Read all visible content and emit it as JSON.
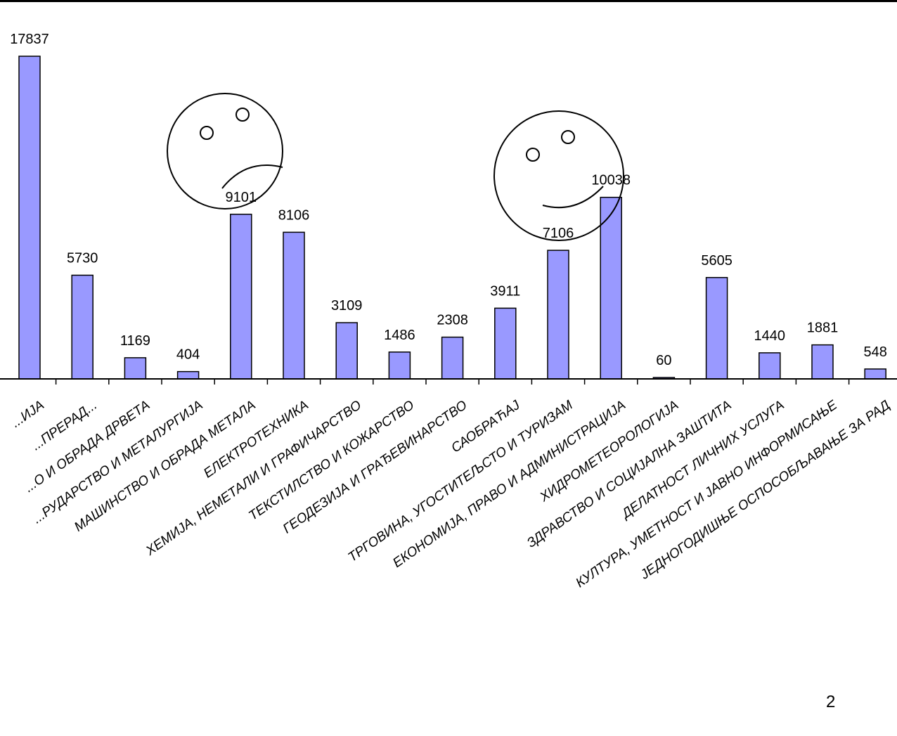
{
  "page_number": "2",
  "chart_data": {
    "type": "bar",
    "title": "",
    "xlabel": "",
    "ylabel": "",
    "ylim": [
      0,
      17837
    ],
    "grid": false,
    "legend": "none",
    "bar_color": "#9999ff",
    "categories": [
      "...ИЈА",
      "...ПРЕРАД...",
      "...О И ОБРАДА ДРВЕТА",
      "...РУДАРСТВО И МЕТАЛУРГИЈА",
      "МАШИНСТВО И ОБРАДА МЕТАЛА",
      "ЕЛЕКТРОТЕХНИКА",
      "ХЕМИЈА, НЕМЕТАЛИ И ГРАФИЧАРСТВО",
      "ТЕКСТИЛСТВО И КОЖАРСТВО",
      "ГЕОДЕЗИЈА И ГРАЂЕВИНАРСТВО",
      "САОБРАЋАЈ",
      "ТРГОВИНА, УГОСТИТЕЉСТО И ТУРИЗАМ",
      "ЕКОНОМИЈА, ПРАВО И АДМИНИСТРАЦИЈА",
      "ХИДРОМЕТЕОРОЛОГИЈА",
      "ЗДРАВСТВО И СОЦИЈАЛНА ЗАШТИТА",
      "ДЕЛАТНОСТ ЛИЧНИХ УСЛУГА",
      "КУЛТУРА, УМЕТНОСТ И ЈАВНО ИНФОРМИСАЊЕ",
      "ЈЕДНОГОДИШЊЕ ОСПОСОБЉАВАЊЕ ЗА РАД"
    ],
    "values": [
      17837,
      5730,
      1169,
      404,
      9101,
      8106,
      3109,
      1486,
      2308,
      3911,
      7106,
      10038,
      60,
      5605,
      1440,
      1881,
      548
    ],
    "value_labels": [
      "17837",
      "5730",
      "1169",
      "404",
      "9101",
      "8106",
      "3109",
      "1486",
      "2308",
      "3911",
      "7106",
      "10038",
      "60",
      "5605",
      "1440",
      "1881",
      "548"
    ],
    "annotations": [
      {
        "type": "sad-face-icon",
        "near_category": "МАШИНСТВО И ОБРАДА МЕТАЛА"
      },
      {
        "type": "happy-face-icon",
        "near_category": "ТРГОВИНА, УГОСТИТЕЉСТО И ТУРИЗАМ"
      }
    ]
  }
}
